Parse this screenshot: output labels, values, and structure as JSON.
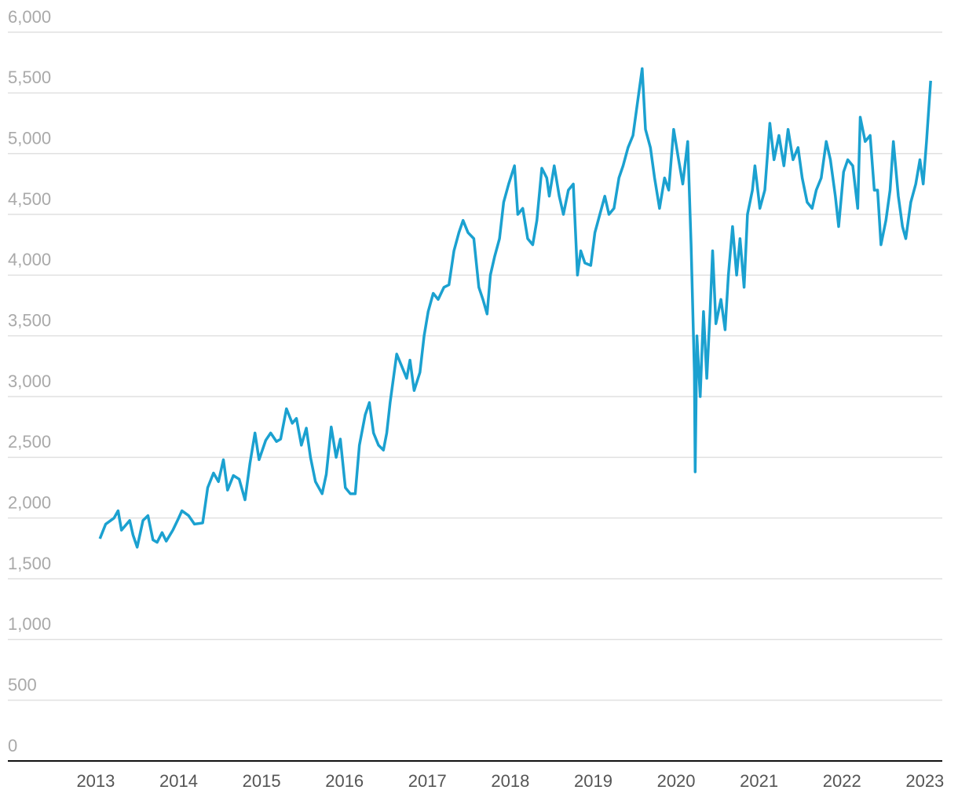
{
  "chart_data": {
    "type": "line",
    "x": [
      2013.05,
      2013.12,
      2013.22,
      2013.27,
      2013.31,
      2013.41,
      2013.45,
      2013.5,
      2013.57,
      2013.63,
      2013.69,
      2013.74,
      2013.8,
      2013.85,
      2013.93,
      2014.0,
      2014.04,
      2014.12,
      2014.19,
      2014.29,
      2014.35,
      2014.42,
      2014.48,
      2014.54,
      2014.59,
      2014.66,
      2014.73,
      2014.8,
      2014.86,
      2014.92,
      2014.97,
      2015.05,
      2015.11,
      2015.18,
      2015.23,
      2015.3,
      2015.37,
      2015.42,
      2015.48,
      2015.54,
      2015.59,
      2015.65,
      2015.73,
      2015.78,
      2015.84,
      2015.9,
      2015.95,
      2016.01,
      2016.07,
      2016.13,
      2016.18,
      2016.25,
      2016.3,
      2016.35,
      2016.41,
      2016.47,
      2016.51,
      2016.55,
      2016.63,
      2016.69,
      2016.75,
      2016.79,
      2016.84,
      2016.91,
      2016.96,
      2017.01,
      2017.07,
      2017.13,
      2017.2,
      2017.26,
      2017.32,
      2017.38,
      2017.43,
      2017.49,
      2017.56,
      2017.62,
      2017.67,
      2017.72,
      2017.76,
      2017.81,
      2017.87,
      2017.92,
      2017.98,
      2018.05,
      2018.09,
      2018.15,
      2018.21,
      2018.27,
      2018.32,
      2018.38,
      2018.44,
      2018.47,
      2018.53,
      2018.59,
      2018.64,
      2018.7,
      2018.76,
      2018.81,
      2018.85,
      2018.9,
      2018.97,
      2019.02,
      2019.08,
      2019.14,
      2019.19,
      2019.25,
      2019.31,
      2019.36,
      2019.42,
      2019.48,
      2019.53,
      2019.59,
      2019.63,
      2019.69,
      2019.74,
      2019.8,
      2019.86,
      2019.91,
      2019.97,
      2020.03,
      2020.08,
      2020.14,
      2020.18,
      2020.22,
      2020.23,
      2020.25,
      2020.29,
      2020.33,
      2020.37,
      2020.41,
      2020.44,
      2020.48,
      2020.54,
      2020.59,
      2020.63,
      2020.68,
      2020.73,
      2020.77,
      2020.82,
      2020.86,
      2020.92,
      2020.95,
      2021.01,
      2021.07,
      2021.13,
      2021.18,
      2021.24,
      2021.3,
      2021.35,
      2021.41,
      2021.47,
      2021.52,
      2021.58,
      2021.64,
      2021.69,
      2021.75,
      2021.81,
      2021.86,
      2021.92,
      2021.96,
      2022.02,
      2022.07,
      2022.13,
      2022.19,
      2022.22,
      2022.28,
      2022.34,
      2022.39,
      2022.43,
      2022.47,
      2022.53,
      2022.58,
      2022.62,
      2022.68,
      2022.73,
      2022.77,
      2022.83,
      2022.89,
      2022.94,
      2022.98,
      2023.02,
      2023.07
    ],
    "series": [
      {
        "color": "#1ba1d0",
        "values": [
          1830,
          1950,
          2000,
          2060,
          1900,
          1980,
          1860,
          1760,
          1980,
          2020,
          1820,
          1800,
          1880,
          1810,
          1900,
          2000,
          2060,
          2020,
          1950,
          1960,
          2250,
          2370,
          2300,
          2480,
          2230,
          2350,
          2320,
          2150,
          2450,
          2700,
          2480,
          2640,
          2700,
          2630,
          2650,
          2900,
          2780,
          2820,
          2600,
          2740,
          2500,
          2300,
          2200,
          2360,
          2750,
          2500,
          2650,
          2250,
          2200,
          2200,
          2600,
          2850,
          2950,
          2700,
          2600,
          2560,
          2700,
          2950,
          3350,
          3250,
          3150,
          3300,
          3050,
          3200,
          3500,
          3700,
          3850,
          3800,
          3900,
          3920,
          4200,
          4350,
          4450,
          4350,
          4300,
          3900,
          3800,
          3680,
          4000,
          4150,
          4300,
          4600,
          4750,
          4900,
          4500,
          4550,
          4300,
          4250,
          4450,
          4880,
          4800,
          4650,
          4900,
          4650,
          4500,
          4700,
          4750,
          4000,
          4200,
          4100,
          4080,
          4350,
          4500,
          4650,
          4500,
          4550,
          4800,
          4900,
          5050,
          5150,
          5400,
          5700,
          5200,
          5050,
          4800,
          4550,
          4800,
          4700,
          5200,
          4950,
          4750,
          5100,
          4250,
          3200,
          2380,
          3500,
          3000,
          3700,
          3150,
          3700,
          4200,
          3600,
          3800,
          3550,
          4000,
          4400,
          4000,
          4300,
          3900,
          4500,
          4700,
          4900,
          4550,
          4700,
          5250,
          4950,
          5150,
          4900,
          5200,
          4950,
          5050,
          4800,
          4600,
          4550,
          4700,
          4800,
          5100,
          4950,
          4650,
          4400,
          4850,
          4950,
          4900,
          4550,
          5300,
          5100,
          5150,
          4700,
          4700,
          4250,
          4450,
          4700,
          5100,
          4650,
          4400,
          4300,
          4600,
          4750,
          4950,
          4750,
          5100,
          5600
        ]
      }
    ],
    "xlim": [
      2011.94,
      2023.21
    ],
    "xticks": [
      2013,
      2014,
      2015,
      2016,
      2017,
      2018,
      2019,
      2020,
      2021,
      2022,
      2023
    ],
    "ylim": [
      0,
      6000
    ],
    "yticks": [
      0,
      500,
      {
        "value": 1000,
        "label": "1,000"
      },
      {
        "value": 1500,
        "label": "1,500"
      },
      {
        "value": 2000,
        "label": "2,000"
      },
      {
        "value": 2500,
        "label": "2,500"
      },
      {
        "value": 3000,
        "label": "3,000"
      },
      {
        "value": 3500,
        "label": "3,500"
      },
      {
        "value": 4000,
        "label": "4,000"
      },
      {
        "value": 4500,
        "label": "4,500"
      },
      {
        "value": 5000,
        "label": "5,000"
      },
      {
        "value": 5500,
        "label": "5,500"
      },
      {
        "value": 6000,
        "label": "6,000"
      }
    ],
    "grid": true
  }
}
